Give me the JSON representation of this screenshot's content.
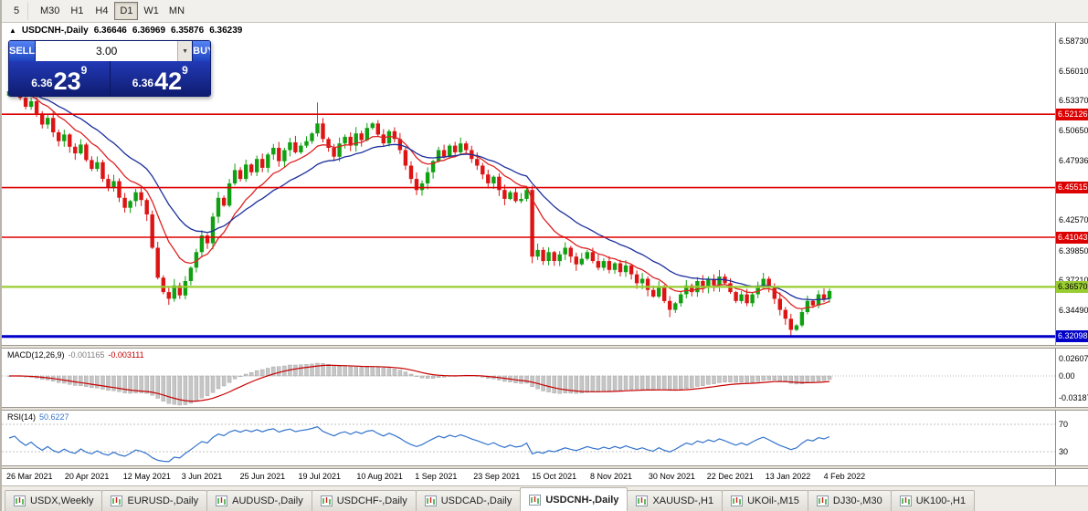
{
  "toolbar": {
    "timeframes": [
      "5",
      "M30",
      "H1",
      "H4",
      "D1",
      "W1",
      "MN"
    ],
    "active": "D1"
  },
  "header": {
    "collapse_icon": "▲",
    "symbol": "USDCNH-,Daily",
    "open": "6.36646",
    "high": "6.36969",
    "low": "6.35876",
    "close": "6.36239"
  },
  "trade_panel": {
    "sell_label": "SELL",
    "buy_label": "BUY",
    "volume": "3.00",
    "dropdown_icon": "▼",
    "bid": {
      "prefix": "6.36",
      "big": "23",
      "sup": "9"
    },
    "ask": {
      "prefix": "6.36",
      "big": "42",
      "sup": "9"
    }
  },
  "price_axis": {
    "ticks": [
      {
        "price": 6.5873,
        "label": "6.58730"
      },
      {
        "price": 6.5601,
        "label": "6.56010"
      },
      {
        "price": 6.5337,
        "label": "6.53370"
      },
      {
        "price": 6.5065,
        "label": "6.50650"
      },
      {
        "price": 6.47936,
        "label": "6.47936"
      },
      {
        "price": 6.4257,
        "label": "6.42570"
      },
      {
        "price": 6.3985,
        "label": "6.39850"
      },
      {
        "price": 6.3721,
        "label": "6.37210"
      },
      {
        "price": 6.3449,
        "label": "6.34490"
      }
    ],
    "badges": [
      {
        "price": 6.52126,
        "label": "6.52126",
        "bg": "#dd0000",
        "fg": "#ffffff"
      },
      {
        "price": 6.45515,
        "label": "6.45515",
        "bg": "#dd0000",
        "fg": "#ffffff"
      },
      {
        "price": 6.41043,
        "label": "6.41043",
        "bg": "#dd0000",
        "fg": "#ffffff"
      },
      {
        "price": 6.3657,
        "label": "6.36570",
        "bg": "#9acd32",
        "fg": "#000000"
      },
      {
        "price": 6.32098,
        "label": "6.32098",
        "bg": "#0000c8",
        "fg": "#ffffff"
      }
    ]
  },
  "chart_data": {
    "type": "candlestick",
    "symbol": "USDCNH",
    "timeframe": "Daily",
    "y_range": [
      6.3134,
      6.6037
    ],
    "x_labels": [
      "26 Mar 2021",
      "20 Apr 2021",
      "12 May 2021",
      "3 Jun 2021",
      "25 Jun 2021",
      "19 Jul 2021",
      "10 Aug 2021",
      "1 Sep 2021",
      "23 Sep 2021",
      "15 Oct 2021",
      "8 Nov 2021",
      "30 Nov 2021",
      "22 Dec 2021",
      "13 Jan 2022",
      "4 Feb 2022"
    ],
    "levels": [
      {
        "price": 6.52126,
        "color": "#dd0000",
        "width": 1.6
      },
      {
        "price": 6.45515,
        "color": "#dd0000",
        "width": 1.6
      },
      {
        "price": 6.41043,
        "color": "#dd0000",
        "width": 1.6
      },
      {
        "price": 6.3657,
        "color": "#9acd32",
        "width": 2.2
      },
      {
        "price": 6.32098,
        "color": "#0000c8",
        "width": 3
      }
    ],
    "up_color": "#11a011",
    "down_color": "#dd1414",
    "moving_averages": [
      {
        "period": 10,
        "color": "#dd2222"
      },
      {
        "period": 21,
        "color": "#1c2f9c"
      }
    ],
    "candles": {
      "first_open": 6.538,
      "closes": [
        6.542,
        6.545,
        6.536,
        6.528,
        6.533,
        6.522,
        6.512,
        6.518,
        6.505,
        6.497,
        6.503,
        6.492,
        6.486,
        6.494,
        6.48,
        6.472,
        6.478,
        6.463,
        6.455,
        6.461,
        6.446,
        6.437,
        6.443,
        6.451,
        6.444,
        6.431,
        6.401,
        6.374,
        6.361,
        6.355,
        6.367,
        6.358,
        6.371,
        6.383,
        6.397,
        6.412,
        6.405,
        6.429,
        6.446,
        6.439,
        6.459,
        6.471,
        6.463,
        6.476,
        6.469,
        6.481,
        6.473,
        6.485,
        6.491,
        6.479,
        6.489,
        6.496,
        6.487,
        6.493,
        6.497,
        6.504,
        6.513,
        6.499,
        6.491,
        6.483,
        6.495,
        6.501,
        6.493,
        6.504,
        6.498,
        6.509,
        6.513,
        6.503,
        6.495,
        6.506,
        6.499,
        6.489,
        6.475,
        6.463,
        6.453,
        6.459,
        6.469,
        6.479,
        6.489,
        6.483,
        6.493,
        6.487,
        6.495,
        6.489,
        6.481,
        6.475,
        6.467,
        6.459,
        6.465,
        6.453,
        6.445,
        6.451,
        6.443,
        6.445,
        6.453,
        6.393,
        6.399,
        6.389,
        6.397,
        6.389,
        6.395,
        6.401,
        6.393,
        6.386,
        6.391,
        6.397,
        6.389,
        6.383,
        6.389,
        6.381,
        6.387,
        6.379,
        6.385,
        6.377,
        6.369,
        6.373,
        6.363,
        6.357,
        6.365,
        6.353,
        6.345,
        6.351,
        6.359,
        6.367,
        6.361,
        6.371,
        6.365,
        6.373,
        6.367,
        6.375,
        6.369,
        6.361,
        6.353,
        6.359,
        6.351,
        6.359,
        6.367,
        6.373,
        6.365,
        6.355,
        6.345,
        6.337,
        6.327,
        6.331,
        6.343,
        6.353,
        6.349,
        6.359,
        6.355,
        6.362
      ],
      "wick_overrides": {
        "1": {
          "high": 6.552
        },
        "29": {
          "low": 6.3495
        },
        "56": {
          "high": 6.532
        },
        "95": {
          "low": 6.387
        },
        "120": {
          "low": 6.3385
        },
        "142": {
          "low": 6.321
        }
      }
    }
  },
  "macd": {
    "label": "MACD(12,26,9)",
    "value1": "-0.001165",
    "value2": "-0.003111",
    "ticks": [
      "0.02607",
      "0.00",
      "-0.03187"
    ],
    "fast": 12,
    "slow": 26,
    "signal": 9,
    "histogram_color": "#c6c6c6",
    "signal_color": "#c80000"
  },
  "rsi": {
    "label": "RSI(14)",
    "value": "50.6227",
    "period": 14,
    "levels": [
      70,
      30
    ],
    "line_color": "#3373cc"
  },
  "tabs": {
    "items": [
      {
        "label": "USDX,Weekly",
        "active": false
      },
      {
        "label": "EURUSD-,Daily",
        "active": false
      },
      {
        "label": "AUDUSD-,Daily",
        "active": false
      },
      {
        "label": "USDCHF-,Daily",
        "active": false
      },
      {
        "label": "USDCAD-,Daily",
        "active": false
      },
      {
        "label": "USDCNH-,Daily",
        "active": true
      },
      {
        "label": "XAUUSD-,H1",
        "active": false
      },
      {
        "label": "UKOil-,M15",
        "active": false
      },
      {
        "label": "DJ30-,M30",
        "active": false
      },
      {
        "label": "UK100-,H1",
        "active": false
      }
    ]
  }
}
